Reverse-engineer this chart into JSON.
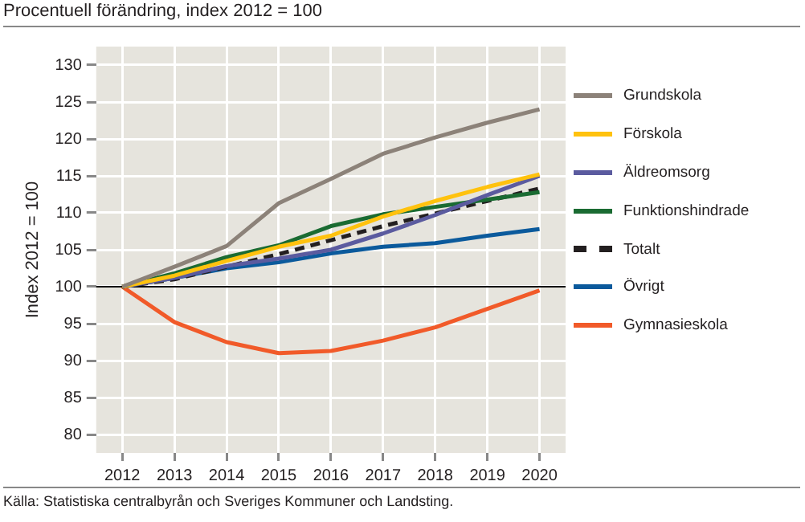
{
  "chart_data": {
    "type": "line",
    "title": "Procentuell förändring, index 2012 = 100",
    "ylabel": "Index 2012 = 100",
    "categories": [
      "2012",
      "2013",
      "2014",
      "2015",
      "2016",
      "2017",
      "2018",
      "2019",
      "2020"
    ],
    "series": [
      {
        "name": "Grundskola",
        "color": "#8c8279",
        "values": [
          100,
          102.7,
          105.5,
          111.3,
          114.6,
          118,
          120.2,
          122.2,
          124
        ]
      },
      {
        "name": "Förskola",
        "color": "#ffc20e",
        "values": [
          100,
          101.5,
          103.5,
          105.4,
          106.9,
          109.5,
          111.6,
          113.5,
          115.2
        ]
      },
      {
        "name": "Äldreomsorg",
        "color": "#5b5b9f",
        "values": [
          100,
          101.2,
          102.8,
          103.8,
          105,
          107.2,
          109.7,
          112.4,
          115
        ]
      },
      {
        "name": "Funktionshindrade",
        "color": "#1a6b32",
        "values": [
          100,
          101.8,
          104,
          105.6,
          108.2,
          109.8,
          110.8,
          111.8,
          112.8
        ]
      },
      {
        "name": "Totalt",
        "color": "#231f20",
        "line_style": "dashed",
        "values": [
          100,
          101,
          102.7,
          104.4,
          106.3,
          108.2,
          109.9,
          111.6,
          113.3
        ]
      },
      {
        "name": "Övrigt",
        "color": "#0b5a9c",
        "values": [
          100,
          101.2,
          102.5,
          103.3,
          104.5,
          105.4,
          105.9,
          106.9,
          107.8
        ]
      },
      {
        "name": "Gymnasieskola",
        "color": "#f15a29",
        "values": [
          100,
          95.2,
          92.5,
          91,
          91.3,
          92.7,
          94.5,
          97,
          99.5
        ]
      }
    ],
    "ylim": [
      77.5,
      132.5
    ],
    "yticks": [
      80,
      85,
      90,
      95,
      100,
      105,
      110,
      115,
      120,
      125,
      130
    ],
    "grid": true,
    "legend": "right",
    "marker": "none",
    "line_style": "solid",
    "ref_lines": [
      {
        "axis": "y",
        "value": 100,
        "color": "#000000"
      }
    ],
    "annotations": [
      "Källa: Statistiska centralbyrån och Sveriges Kommuner och Landsting."
    ]
  }
}
